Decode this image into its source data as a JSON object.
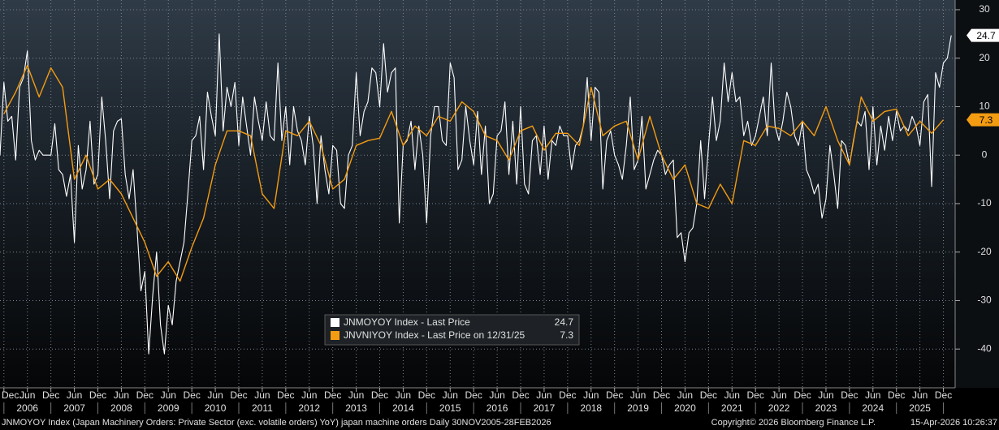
{
  "chart_data": {
    "type": "line",
    "xlim": [
      "2005-11",
      "2026-03"
    ],
    "ylim": [
      -48,
      32
    ],
    "yticks": [
      30,
      20,
      10,
      0,
      -10,
      -20,
      -30,
      -40
    ],
    "grid": true,
    "legend_position": "bottom-center",
    "xticks": [
      {
        "value": "2005-12",
        "label": "Dec..."
      },
      {
        "value": "2006-06",
        "label": "Jun"
      },
      {
        "value": "2006-12",
        "label": "Dec"
      },
      {
        "value": "2007-06",
        "label": "Jun"
      },
      {
        "value": "2007-12",
        "label": "Dec"
      },
      {
        "value": "2008-06",
        "label": "Jun"
      },
      {
        "value": "2008-12",
        "label": "Dec"
      },
      {
        "value": "2009-06",
        "label": "Jun"
      },
      {
        "value": "2009-12",
        "label": "Dec"
      },
      {
        "value": "2010-06",
        "label": "Jun"
      },
      {
        "value": "2010-12",
        "label": "Dec"
      },
      {
        "value": "2011-06",
        "label": "Jun"
      },
      {
        "value": "2011-12",
        "label": "Dec"
      },
      {
        "value": "2012-06",
        "label": "Jun"
      },
      {
        "value": "2012-12",
        "label": "Dec"
      },
      {
        "value": "2013-06",
        "label": "Jun"
      },
      {
        "value": "2013-12",
        "label": "Dec"
      },
      {
        "value": "2014-06",
        "label": "Jun"
      },
      {
        "value": "2014-12",
        "label": "Dec"
      },
      {
        "value": "2015-06",
        "label": "Jun"
      },
      {
        "value": "2015-12",
        "label": "Dec"
      },
      {
        "value": "2016-06",
        "label": "Jun"
      },
      {
        "value": "2016-12",
        "label": "Dec"
      },
      {
        "value": "2017-06",
        "label": "Jun"
      },
      {
        "value": "2017-12",
        "label": "Dec"
      },
      {
        "value": "2018-06",
        "label": "Jun"
      },
      {
        "value": "2018-12",
        "label": "Dec"
      },
      {
        "value": "2019-06",
        "label": "Jun"
      },
      {
        "value": "2019-12",
        "label": "Dec"
      },
      {
        "value": "2020-06",
        "label": "Jun"
      },
      {
        "value": "2020-12",
        "label": "Dec"
      },
      {
        "value": "2021-06",
        "label": "Jun"
      },
      {
        "value": "2021-12",
        "label": "Dec"
      },
      {
        "value": "2022-06",
        "label": "Jun"
      },
      {
        "value": "2022-12",
        "label": "Dec"
      },
      {
        "value": "2023-06",
        "label": "Jun"
      },
      {
        "value": "2023-12",
        "label": "Dec"
      },
      {
        "value": "2024-06",
        "label": "Jun"
      },
      {
        "value": "2024-12",
        "label": "Dec"
      },
      {
        "value": "2025-06",
        "label": "Jun"
      },
      {
        "value": "2025-12",
        "label": "Dec"
      }
    ],
    "year_labels": [
      {
        "value": "2006-06",
        "label": "2006"
      },
      {
        "value": "2007-06",
        "label": "2007"
      },
      {
        "value": "2008-06",
        "label": "2008"
      },
      {
        "value": "2009-06",
        "label": "2009"
      },
      {
        "value": "2010-06",
        "label": "2010"
      },
      {
        "value": "2011-06",
        "label": "2011"
      },
      {
        "value": "2012-06",
        "label": "2012"
      },
      {
        "value": "2013-06",
        "label": "2013"
      },
      {
        "value": "2014-06",
        "label": "2014"
      },
      {
        "value": "2015-06",
        "label": "2015"
      },
      {
        "value": "2016-06",
        "label": "2016"
      },
      {
        "value": "2017-06",
        "label": "2017"
      },
      {
        "value": "2018-06",
        "label": "2018"
      },
      {
        "value": "2019-06",
        "label": "2019"
      },
      {
        "value": "2020-06",
        "label": "2020"
      },
      {
        "value": "2021-06",
        "label": "2021"
      },
      {
        "value": "2022-06",
        "label": "2022"
      },
      {
        "value": "2023-06",
        "label": "2023"
      },
      {
        "value": "2024-06",
        "label": "2024"
      },
      {
        "value": "2025-06",
        "label": "2025"
      }
    ],
    "series": [
      {
        "name": "JNMOYOY Index - Last Price",
        "color": "#ffffff",
        "last_value": 24.7,
        "x": [
          "2005-11",
          "2005-12",
          "2006-01",
          "2006-02",
          "2006-03",
          "2006-04",
          "2006-05",
          "2006-06",
          "2006-07",
          "2006-08",
          "2006-09",
          "2006-10",
          "2006-11",
          "2006-12",
          "2007-01",
          "2007-02",
          "2007-03",
          "2007-04",
          "2007-05",
          "2007-06",
          "2007-07",
          "2007-08",
          "2007-09",
          "2007-10",
          "2007-11",
          "2007-12",
          "2008-01",
          "2008-02",
          "2008-03",
          "2008-04",
          "2008-05",
          "2008-06",
          "2008-07",
          "2008-08",
          "2008-09",
          "2008-10",
          "2008-11",
          "2008-12",
          "2009-01",
          "2009-02",
          "2009-03",
          "2009-04",
          "2009-05",
          "2009-06",
          "2009-07",
          "2009-08",
          "2009-09",
          "2009-10",
          "2009-11",
          "2009-12",
          "2010-01",
          "2010-02",
          "2010-03",
          "2010-04",
          "2010-05",
          "2010-06",
          "2010-07",
          "2010-08",
          "2010-09",
          "2010-10",
          "2010-11",
          "2010-12",
          "2011-01",
          "2011-02",
          "2011-03",
          "2011-04",
          "2011-05",
          "2011-06",
          "2011-07",
          "2011-08",
          "2011-09",
          "2011-10",
          "2011-11",
          "2011-12",
          "2012-01",
          "2012-02",
          "2012-03",
          "2012-04",
          "2012-05",
          "2012-06",
          "2012-07",
          "2012-08",
          "2012-09",
          "2012-10",
          "2012-11",
          "2012-12",
          "2013-01",
          "2013-02",
          "2013-03",
          "2013-04",
          "2013-05",
          "2013-06",
          "2013-07",
          "2013-08",
          "2013-09",
          "2013-10",
          "2013-11",
          "2013-12",
          "2014-01",
          "2014-02",
          "2014-03",
          "2014-04",
          "2014-05",
          "2014-06",
          "2014-07",
          "2014-08",
          "2014-09",
          "2014-10",
          "2014-11",
          "2014-12",
          "2015-01",
          "2015-02",
          "2015-03",
          "2015-04",
          "2015-05",
          "2015-06",
          "2015-07",
          "2015-08",
          "2015-09",
          "2015-10",
          "2015-11",
          "2015-12",
          "2016-01",
          "2016-02",
          "2016-03",
          "2016-04",
          "2016-05",
          "2016-06",
          "2016-07",
          "2016-08",
          "2016-09",
          "2016-10",
          "2016-11",
          "2016-12",
          "2017-01",
          "2017-02",
          "2017-03",
          "2017-04",
          "2017-05",
          "2017-06",
          "2017-07",
          "2017-08",
          "2017-09",
          "2017-10",
          "2017-11",
          "2017-12",
          "2018-01",
          "2018-02",
          "2018-03",
          "2018-04",
          "2018-05",
          "2018-06",
          "2018-07",
          "2018-08",
          "2018-09",
          "2018-10",
          "2018-11",
          "2018-12",
          "2019-01",
          "2019-02",
          "2019-03",
          "2019-04",
          "2019-05",
          "2019-06",
          "2019-07",
          "2019-08",
          "2019-09",
          "2019-10",
          "2019-11",
          "2019-12",
          "2020-01",
          "2020-02",
          "2020-03",
          "2020-04",
          "2020-05",
          "2020-06",
          "2020-07",
          "2020-08",
          "2020-09",
          "2020-10",
          "2020-11",
          "2020-12",
          "2021-01",
          "2021-02",
          "2021-03",
          "2021-04",
          "2021-05",
          "2021-06",
          "2021-07",
          "2021-08",
          "2021-09",
          "2021-10",
          "2021-11",
          "2021-12",
          "2022-01",
          "2022-02",
          "2022-03",
          "2022-04",
          "2022-05",
          "2022-06",
          "2022-07",
          "2022-08",
          "2022-09",
          "2022-10",
          "2022-11",
          "2022-12",
          "2023-01",
          "2023-02",
          "2023-03",
          "2023-04",
          "2023-05",
          "2023-06",
          "2023-07",
          "2023-08",
          "2023-09",
          "2023-10",
          "2023-11",
          "2023-12",
          "2024-01",
          "2024-02",
          "2024-03",
          "2024-04",
          "2024-05",
          "2024-06",
          "2024-07",
          "2024-08",
          "2024-09",
          "2024-10",
          "2024-11",
          "2024-12",
          "2025-01",
          "2025-02",
          "2025-03",
          "2025-04",
          "2025-05",
          "2025-06",
          "2025-07",
          "2025-08",
          "2025-09",
          "2025-10",
          "2025-11",
          "2025-12",
          "2026-01",
          "2026-02"
        ],
        "values": [
          0,
          15,
          7,
          8,
          -1,
          14,
          16,
          21.5,
          3,
          -1,
          1,
          0,
          0,
          0,
          6.5,
          -3,
          -4,
          -8.5,
          -4,
          -18,
          2,
          -7,
          -3,
          7,
          -6,
          -4,
          12,
          3,
          -9,
          5,
          7,
          7.5,
          -4,
          -9,
          -3,
          -15,
          -28,
          -24,
          -41,
          -29,
          -20,
          -35,
          -41,
          -31,
          -35,
          -26,
          -22,
          -18,
          -8,
          3,
          4,
          8,
          -3,
          13,
          8,
          4,
          25,
          5,
          14,
          10,
          15,
          2,
          12,
          6,
          0,
          12,
          7,
          3,
          11,
          4,
          3,
          19,
          3,
          10,
          -2,
          10,
          5,
          3,
          -2,
          8,
          2,
          -10,
          4,
          -3,
          -8,
          2,
          1,
          -10,
          -11,
          0,
          2,
          17,
          4,
          9,
          11,
          18,
          17,
          10,
          23,
          13,
          17,
          18,
          -14,
          2,
          3,
          7,
          -3,
          6,
          0,
          -14,
          4,
          10,
          10,
          3,
          2,
          19,
          16,
          -3,
          -1,
          10,
          3,
          -2,
          9,
          -4,
          6,
          -10,
          -8,
          4,
          5,
          11,
          -4,
          7,
          -6,
          10,
          -6,
          -8,
          3,
          4,
          -4,
          6,
          -5,
          3,
          2,
          6,
          4,
          4,
          -3,
          2,
          3,
          6,
          16,
          3,
          14,
          13,
          -7,
          3,
          5,
          0,
          -2,
          -5,
          2,
          12,
          -3,
          -1,
          8,
          -7,
          -4,
          -1,
          1,
          0,
          -4,
          -2,
          -1,
          -17,
          -16,
          -22,
          -16,
          -15,
          -10,
          3,
          -9,
          2,
          12,
          3,
          7,
          19,
          11,
          17,
          11,
          12,
          4,
          7,
          2,
          4,
          8,
          12,
          4,
          19,
          6,
          3,
          7,
          13,
          10,
          4,
          2,
          7,
          -3,
          -5,
          -8,
          -6,
          -13,
          -9,
          2,
          -4,
          -11,
          3,
          2,
          -2,
          3,
          7,
          6,
          9,
          -3,
          10,
          -2,
          6,
          1,
          8,
          3,
          9,
          5,
          6,
          5,
          8,
          6,
          2,
          11,
          12.5,
          -6.5,
          17,
          14,
          19,
          20,
          24.7
        ]
      },
      {
        "name": "JNVNIYOY Index - Last Price on 12/31/25",
        "color": "#f39c12",
        "last_value": 7.3,
        "x": [
          "2005-12",
          "2006-03",
          "2006-06",
          "2006-09",
          "2006-12",
          "2007-03",
          "2007-06",
          "2007-09",
          "2007-12",
          "2008-03",
          "2008-06",
          "2008-09",
          "2008-12",
          "2009-03",
          "2009-06",
          "2009-09",
          "2009-12",
          "2010-03",
          "2010-06",
          "2010-09",
          "2010-12",
          "2011-03",
          "2011-06",
          "2011-09",
          "2011-12",
          "2012-03",
          "2012-06",
          "2012-09",
          "2012-12",
          "2013-03",
          "2013-06",
          "2013-09",
          "2013-12",
          "2014-03",
          "2014-06",
          "2014-09",
          "2014-12",
          "2015-03",
          "2015-06",
          "2015-09",
          "2015-12",
          "2016-03",
          "2016-06",
          "2016-09",
          "2016-12",
          "2017-03",
          "2017-06",
          "2017-09",
          "2017-12",
          "2018-03",
          "2018-06",
          "2018-09",
          "2018-12",
          "2019-03",
          "2019-06",
          "2019-09",
          "2019-12",
          "2020-03",
          "2020-06",
          "2020-09",
          "2020-12",
          "2021-03",
          "2021-06",
          "2021-09",
          "2021-12",
          "2022-03",
          "2022-06",
          "2022-09",
          "2022-12",
          "2023-03",
          "2023-06",
          "2023-09",
          "2023-12",
          "2024-03",
          "2024-06",
          "2024-09",
          "2024-12",
          "2025-03",
          "2025-06",
          "2025-09",
          "2025-12"
        ],
        "values": [
          8.5,
          13,
          18.5,
          12,
          18,
          14,
          -5,
          0,
          -7,
          -5,
          -8,
          -13,
          -18,
          -25,
          -22,
          -26,
          -19,
          -13,
          -2,
          5,
          5,
          4,
          -8,
          -11,
          5,
          4,
          7,
          2,
          -7,
          -5,
          2,
          3,
          3.5,
          9,
          2,
          6,
          4,
          8,
          7,
          11,
          9,
          4,
          3,
          -1,
          5,
          6,
          1,
          4.5,
          4.5,
          2,
          14,
          4,
          6,
          7,
          -1,
          8,
          0,
          -5,
          -2,
          -10,
          -11,
          -6,
          -10,
          3,
          2,
          6,
          5.5,
          4,
          7,
          4,
          10,
          3,
          -2,
          12,
          7,
          9,
          9.5,
          4,
          7,
          4.5,
          7.3
        ]
      }
    ],
    "footer": {
      "description": "JNMOYOY Index (Japan Machinery Orders: Private Sector (exc. volatile orders) YoY) japan machine orders Daily 30NOV2005-28FEB2026",
      "copyright": "Copyright© 2026 Bloomberg Finance L.P.",
      "timestamp": "15-Apr-2026 10:26:37"
    }
  }
}
